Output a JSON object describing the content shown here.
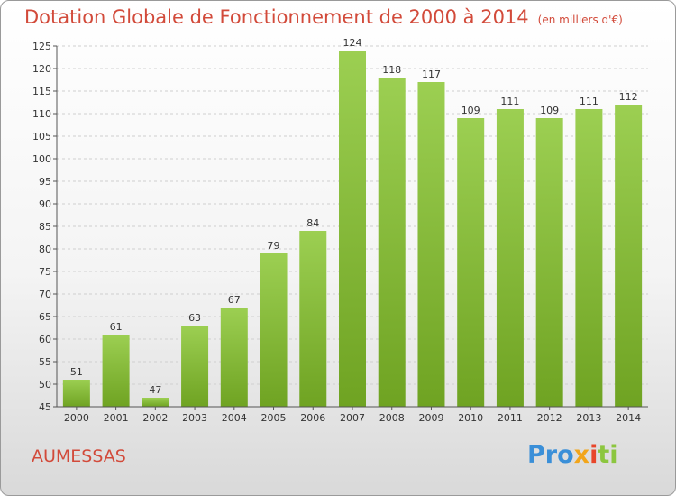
{
  "title": "Dotation Globale de Fonctionnement de 2000 à 2014",
  "unit_note": "(en milliers d'€)",
  "commune": "AUMESSAS",
  "logo": {
    "p1": "Pro",
    "p2": "x",
    "p3": "i",
    "p4": "ti"
  },
  "colors": {
    "bar_top": "#9ccf52",
    "bar_bottom": "#6fa322",
    "title": "#d24a3a",
    "grid": "#cfcfcf"
  },
  "chart_data": {
    "type": "bar",
    "title": "Dotation Globale de Fonctionnement de 2000 à 2014",
    "subtitle": "(en milliers d'€)",
    "categories": [
      "2000",
      "2001",
      "2002",
      "2003",
      "2004",
      "2005",
      "2006",
      "2007",
      "2008",
      "2009",
      "2010",
      "2011",
      "2012",
      "2013",
      "2014"
    ],
    "values": [
      51,
      61,
      47,
      63,
      67,
      79,
      84,
      124,
      118,
      117,
      109,
      111,
      109,
      111,
      112
    ],
    "ylim": [
      45,
      125
    ],
    "ytick_step": 5,
    "grid": "horizontal dashed",
    "data_labels": true
  }
}
